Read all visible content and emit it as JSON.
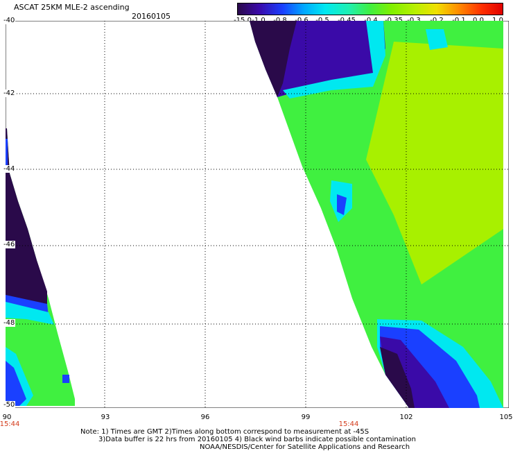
{
  "header": {
    "title": "ASCAT 25KM MLE-2 ascending",
    "date": "20160105"
  },
  "colorbar": {
    "labels": [
      "-15.0",
      "-1.0",
      "-0.8",
      "-0.6",
      "-0.5",
      "-0.45",
      "-0.4",
      "-0.35",
      "-0.3",
      "-0.2",
      "-0.1",
      "0.0",
      "1.0"
    ],
    "colors": [
      "#2a0a4a",
      "#3a0aa8",
      "#1a40ff",
      "#00a8ff",
      "#00e8f0",
      "#20f0b0",
      "#40f040",
      "#80f000",
      "#b8f000",
      "#f0e000",
      "#ff9000",
      "#ff3000",
      "#e00000"
    ]
  },
  "axes": {
    "lat_labels": [
      "-40",
      "-42",
      "-44",
      "-46",
      "-48",
      "-50"
    ],
    "lon_labels": [
      "90",
      "93",
      "96",
      "99",
      "102",
      "105"
    ],
    "time_labels": [
      "15:44",
      "15:44"
    ]
  },
  "footer": {
    "line1": "Note: 1) Times are GMT 2)Times along bottom correspond to measurement at -45S",
    "line2": "3)Data buffer is 22 hrs from 20160105 4) Black wind barbs indicate possible contamination",
    "line3": "NOAA/NESDIS/Center for Satellite Applications and Research"
  },
  "palette": {
    "dark_purple": "#2a0a4a",
    "purple": "#3a0aa8",
    "blue": "#1a40ff",
    "cyan": "#00e8f0",
    "green": "#40f040",
    "lime": "#a8f000"
  }
}
